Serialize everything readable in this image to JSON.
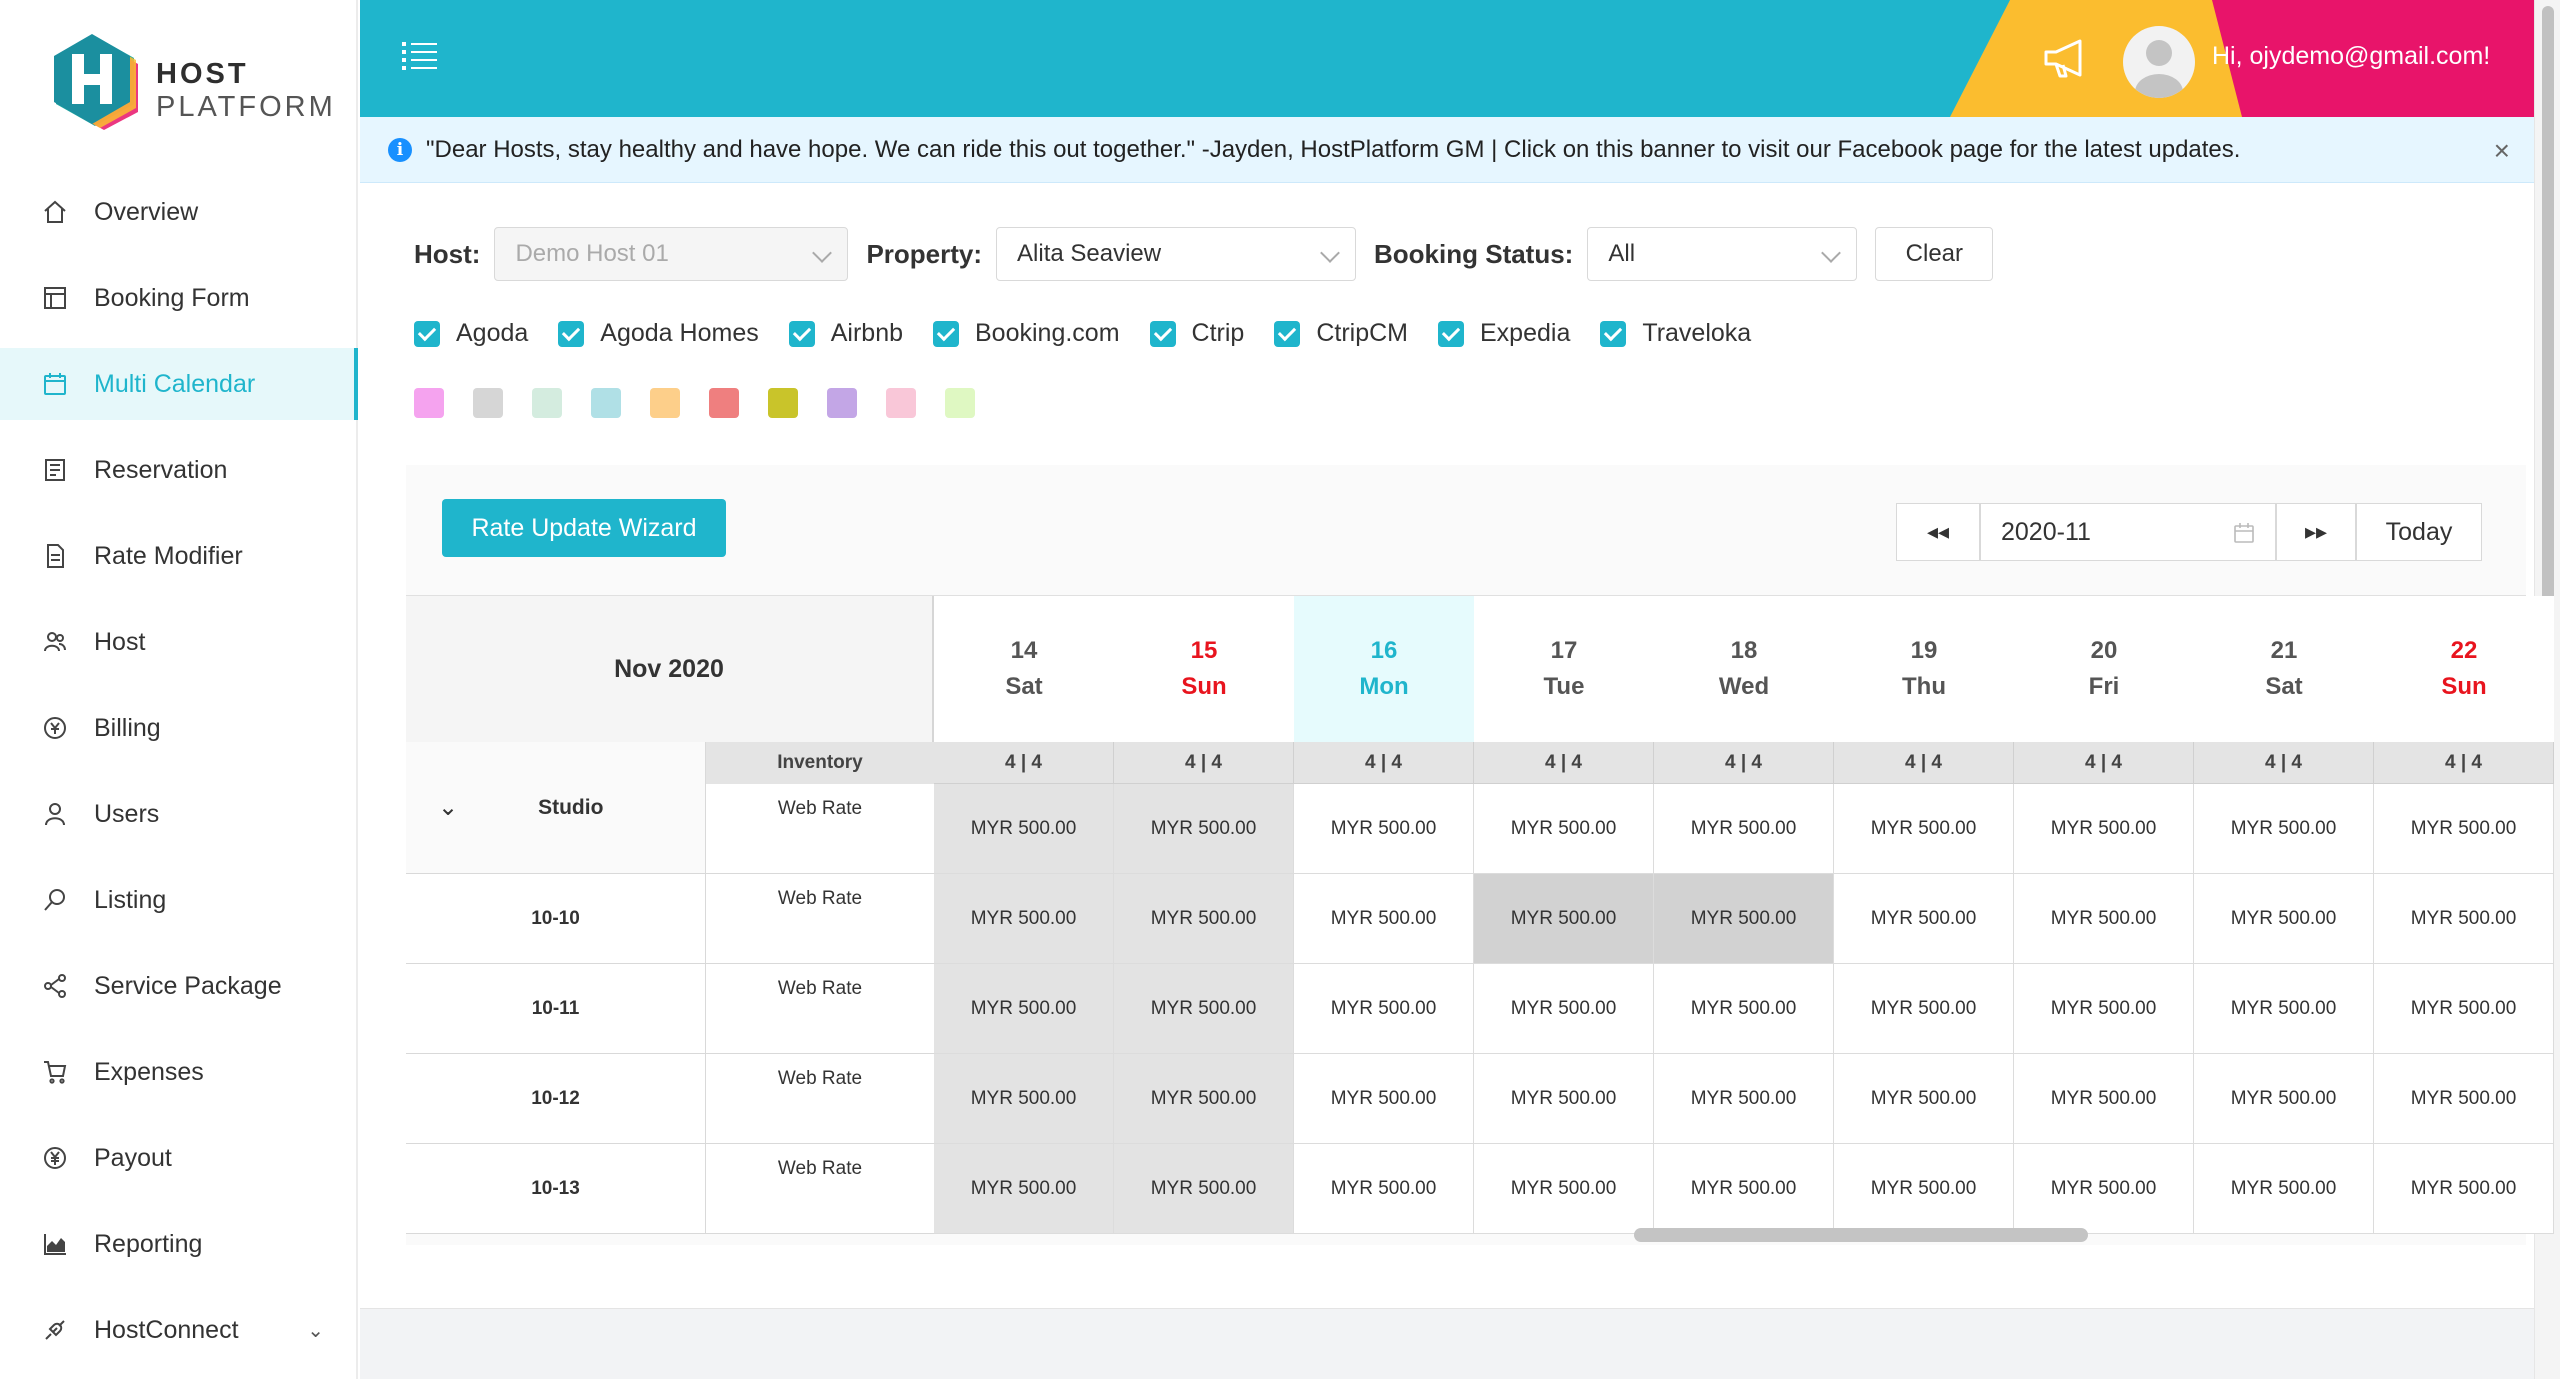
{
  "logo": {
    "line1": "HOST",
    "line2": "PLATFORM"
  },
  "sidebar": {
    "items": [
      {
        "label": "Overview",
        "icon": "home-icon"
      },
      {
        "label": "Booking Form",
        "icon": "form-icon"
      },
      {
        "label": "Multi Calendar",
        "icon": "calendar-icon",
        "active": true
      },
      {
        "label": "Reservation",
        "icon": "list-icon"
      },
      {
        "label": "Rate Modifier",
        "icon": "document-icon"
      },
      {
        "label": "Host",
        "icon": "team-icon"
      },
      {
        "label": "Billing",
        "icon": "billing-icon"
      },
      {
        "label": "Users",
        "icon": "user-icon"
      },
      {
        "label": "Listing",
        "icon": "search-icon"
      },
      {
        "label": "Service Package",
        "icon": "share-icon"
      },
      {
        "label": "Expenses",
        "icon": "cart-icon"
      },
      {
        "label": "Payout",
        "icon": "yen-icon"
      },
      {
        "label": "Reporting",
        "icon": "area-chart-icon"
      },
      {
        "label": "HostConnect",
        "icon": "api-icon",
        "has_submenu": true
      }
    ]
  },
  "header": {
    "greeting": "Hi, ojydemo@gmail.com!",
    "colors": {
      "main": "#1fb5cc",
      "yellow": "#fbbd2f",
      "pink": "#e8146a"
    }
  },
  "banner": {
    "message": "\"Dear Hosts, stay healthy and have hope. We can ride this out together.\" -Jayden, HostPlatform GM | Click on this banner to visit our Facebook page for the latest updates.",
    "close": "×"
  },
  "filters": {
    "host_label": "Host:",
    "host_value": "Demo Host 01",
    "property_label": "Property:",
    "property_value": "Alita Seaview",
    "status_label": "Booking Status:",
    "status_value": "All",
    "clear_label": "Clear"
  },
  "channels": [
    "Agoda",
    "Agoda Homes",
    "Airbnb",
    "Booking.com",
    "Ctrip",
    "CtripCM",
    "Expedia",
    "Traveloka"
  ],
  "legend_colors": [
    "#f5a3ef",
    "#d6d6d6",
    "#d4ecdf",
    "#b0e0e6",
    "#fdcf8a",
    "#ef7f7f",
    "#c9c42a",
    "#c3a6e6",
    "#f9c7d8",
    "#dff8c2"
  ],
  "calendar": {
    "wizard_label": "Rate Update Wizard",
    "prev_label": "◂◂",
    "next_label": "▸▸",
    "month_value": "2020-11",
    "today_label": "Today",
    "month_title": "Nov 2020",
    "days": [
      {
        "num": "14",
        "dow": "Sat",
        "kind": "normal"
      },
      {
        "num": "15",
        "dow": "Sun",
        "kind": "weekend"
      },
      {
        "num": "16",
        "dow": "Mon",
        "kind": "today"
      },
      {
        "num": "17",
        "dow": "Tue",
        "kind": "normal"
      },
      {
        "num": "18",
        "dow": "Wed",
        "kind": "normal"
      },
      {
        "num": "19",
        "dow": "Thu",
        "kind": "normal"
      },
      {
        "num": "20",
        "dow": "Fri",
        "kind": "normal"
      },
      {
        "num": "21",
        "dow": "Sat",
        "kind": "normal"
      },
      {
        "num": "22",
        "dow": "Sun",
        "kind": "weekend"
      }
    ],
    "room_type": "Studio",
    "inventory_label": "Inventory",
    "inventory_value": "4 | 4",
    "rate_label": "Web Rate",
    "rooms": [
      {
        "name": "",
        "shade": [
          1,
          1,
          0,
          0,
          0,
          0,
          0,
          0,
          0
        ]
      },
      {
        "name": "10-10",
        "shade": [
          1,
          1,
          0,
          2,
          2,
          0,
          0,
          0,
          0
        ]
      },
      {
        "name": "10-11",
        "shade": [
          1,
          1,
          0,
          0,
          0,
          0,
          0,
          0,
          0
        ]
      },
      {
        "name": "10-12",
        "shade": [
          1,
          1,
          0,
          0,
          0,
          0,
          0,
          0,
          0
        ]
      },
      {
        "name": "10-13",
        "shade": [
          1,
          1,
          0,
          0,
          0,
          0,
          0,
          0,
          0
        ]
      }
    ],
    "rate_value": "MYR 500.00"
  }
}
